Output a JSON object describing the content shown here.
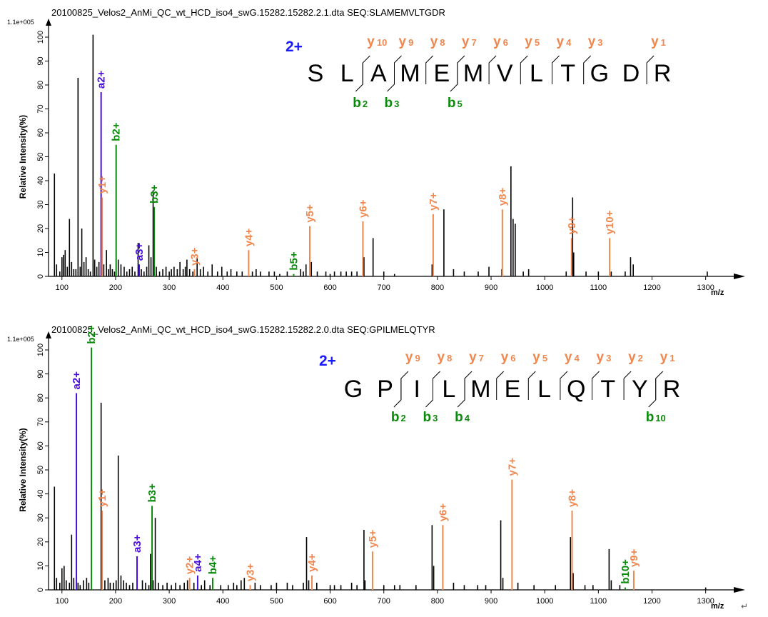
{
  "colors": {
    "y": "#f0874f",
    "b": "#0a8a0a",
    "a": "#4a0fe0",
    "unassigned": "#000000",
    "charge": "#1a1aff"
  },
  "labels": {
    "ylabel": "Relative  Intensity(%)",
    "xlabel": "m/z",
    "scale": "1.1e+005"
  },
  "chart_data": [
    {
      "type": "bar",
      "title": "20100825_Velos2_AnMi_QC_wt_HCD_iso4_swG.15282.15282.2.1.dta  SEQ:SLAMEMVLTGDR",
      "xlabel": "m/z",
      "ylabel": "Relative  Intensity(%)",
      "scale": "1.1e+005",
      "xlim": [
        75,
        1355
      ],
      "ylim": [
        0,
        105
      ],
      "xticks": [
        100,
        200,
        300,
        400,
        500,
        600,
        700,
        800,
        900,
        1000,
        1100,
        1200,
        1300
      ],
      "yticks": [
        0,
        10,
        20,
        30,
        40,
        50,
        60,
        70,
        80,
        90,
        100
      ],
      "charge": "2+",
      "sequence": [
        "S",
        "L",
        "A",
        "M",
        "E",
        "M",
        "V",
        "L",
        "T",
        "G",
        "D",
        "R"
      ],
      "y_ions": [
        {
          "num": "10",
          "after": 2
        },
        {
          "num": "9",
          "after": 3
        },
        {
          "num": "8",
          "after": 4
        },
        {
          "num": "7",
          "after": 5
        },
        {
          "num": "6",
          "after": 6
        },
        {
          "num": "5",
          "after": 7
        },
        {
          "num": "4",
          "after": 8
        },
        {
          "num": "3",
          "after": 9
        },
        {
          "num": "1",
          "after": 11
        }
      ],
      "b_ions": [
        {
          "num": "2",
          "after": 2
        },
        {
          "num": "3",
          "after": 3
        },
        {
          "num": "5",
          "after": 5
        }
      ],
      "annotated_peaks": [
        {
          "label": "a2+",
          "x": 173,
          "y": 77,
          "ion": "a"
        },
        {
          "label": "y1+",
          "x": 175,
          "y": 33,
          "ion": "y"
        },
        {
          "label": "b2+",
          "x": 201,
          "y": 55,
          "ion": "b"
        },
        {
          "label": "a3+",
          "x": 244,
          "y": 5,
          "ion": "a"
        },
        {
          "label": "b3+",
          "x": 272,
          "y": 29,
          "ion": "b"
        },
        {
          "label": "y3+",
          "x": 347,
          "y": 3,
          "ion": "y"
        },
        {
          "label": "y4+",
          "x": 448,
          "y": 11,
          "ion": "y"
        },
        {
          "label": "b5+",
          "x": 532,
          "y": 1,
          "ion": "b"
        },
        {
          "label": "y5+",
          "x": 562,
          "y": 21,
          "ion": "y"
        },
        {
          "label": "y6+",
          "x": 661,
          "y": 23,
          "ion": "y"
        },
        {
          "label": "y7+",
          "x": 792,
          "y": 26,
          "ion": "y"
        },
        {
          "label": "y8+",
          "x": 921,
          "y": 28,
          "ion": "y"
        },
        {
          "label": "y9+",
          "x": 1050,
          "y": 16,
          "ion": "y"
        },
        {
          "label": "y10+",
          "x": 1121,
          "y": 16,
          "ion": "y"
        }
      ],
      "unassigned_peaks": [
        [
          86,
          43
        ],
        [
          90,
          5
        ],
        [
          96,
          2
        ],
        [
          100,
          8
        ],
        [
          103,
          9
        ],
        [
          106,
          11
        ],
        [
          110,
          4
        ],
        [
          114,
          24
        ],
        [
          118,
          6
        ],
        [
          122,
          3
        ],
        [
          126,
          3
        ],
        [
          130,
          83
        ],
        [
          134,
          4
        ],
        [
          137,
          20
        ],
        [
          141,
          6
        ],
        [
          145,
          8
        ],
        [
          149,
          3
        ],
        [
          153,
          2
        ],
        [
          158,
          101
        ],
        [
          161,
          7
        ],
        [
          165,
          4
        ],
        [
          169,
          6
        ],
        [
          178,
          5
        ],
        [
          183,
          11
        ],
        [
          187,
          3
        ],
        [
          190,
          5
        ],
        [
          194,
          3
        ],
        [
          198,
          2
        ],
        [
          205,
          7
        ],
        [
          210,
          5
        ],
        [
          216,
          4
        ],
        [
          221,
          2
        ],
        [
          226,
          3
        ],
        [
          231,
          4
        ],
        [
          236,
          2
        ],
        [
          242,
          14
        ],
        [
          248,
          3
        ],
        [
          253,
          2
        ],
        [
          258,
          4
        ],
        [
          262,
          13
        ],
        [
          266,
          8
        ],
        [
          270,
          36
        ],
        [
          276,
          4
        ],
        [
          282,
          2
        ],
        [
          288,
          3
        ],
        [
          294,
          4
        ],
        [
          300,
          2
        ],
        [
          304,
          3
        ],
        [
          309,
          4
        ],
        [
          315,
          3
        ],
        [
          320,
          6
        ],
        [
          326,
          3
        ],
        [
          330,
          4
        ],
        [
          333,
          7
        ],
        [
          338,
          3
        ],
        [
          344,
          2
        ],
        [
          352,
          8
        ],
        [
          358,
          3
        ],
        [
          364,
          4
        ],
        [
          372,
          2
        ],
        [
          380,
          5
        ],
        [
          390,
          2
        ],
        [
          398,
          4
        ],
        [
          408,
          2
        ],
        [
          415,
          3
        ],
        [
          426,
          2
        ],
        [
          436,
          2
        ],
        [
          455,
          2
        ],
        [
          462,
          3
        ],
        [
          470,
          2
        ],
        [
          486,
          2
        ],
        [
          496,
          2
        ],
        [
          506,
          1
        ],
        [
          520,
          2
        ],
        [
          545,
          3
        ],
        [
          550,
          2
        ],
        [
          555,
          5
        ],
        [
          565,
          6
        ],
        [
          576,
          2
        ],
        [
          592,
          2
        ],
        [
          600,
          1
        ],
        [
          608,
          2
        ],
        [
          620,
          2
        ],
        [
          630,
          2
        ],
        [
          640,
          2
        ],
        [
          650,
          2
        ],
        [
          663,
          8
        ],
        [
          680,
          16
        ],
        [
          700,
          2
        ],
        [
          720,
          1
        ],
        [
          790,
          5
        ],
        [
          812,
          28
        ],
        [
          830,
          3
        ],
        [
          850,
          2
        ],
        [
          876,
          2
        ],
        [
          896,
          4
        ],
        [
          920,
          3
        ],
        [
          937,
          46
        ],
        [
          941,
          24
        ],
        [
          945,
          22
        ],
        [
          960,
          2
        ],
        [
          970,
          3
        ],
        [
          1040,
          2
        ],
        [
          1052,
          33
        ],
        [
          1054,
          10
        ],
        [
          1077,
          2
        ],
        [
          1100,
          2
        ],
        [
          1124,
          2
        ],
        [
          1150,
          2
        ],
        [
          1160,
          8
        ],
        [
          1165,
          5
        ],
        [
          1303,
          2
        ]
      ]
    },
    {
      "type": "bar",
      "title": "20100825_Velos2_AnMi_QC_wt_HCD_iso4_swG.15282.15282.2.0.dta  SEQ:GPILMELQTYR",
      "xlabel": "m/z",
      "ylabel": "Relative  Intensity(%)",
      "scale": "1.1e+005",
      "xlim": [
        75,
        1355
      ],
      "ylim": [
        0,
        105
      ],
      "xticks": [
        100,
        200,
        300,
        400,
        500,
        600,
        700,
        800,
        900,
        1000,
        1100,
        1200,
        1300
      ],
      "yticks": [
        0,
        10,
        20,
        30,
        40,
        50,
        60,
        70,
        80,
        90,
        100
      ],
      "charge": "2+",
      "sequence": [
        "G",
        "P",
        "I",
        "L",
        "M",
        "E",
        "L",
        "Q",
        "T",
        "Y",
        "R"
      ],
      "y_ions": [
        {
          "num": "9",
          "after": 2
        },
        {
          "num": "8",
          "after": 3
        },
        {
          "num": "7",
          "after": 4
        },
        {
          "num": "6",
          "after": 5
        },
        {
          "num": "5",
          "after": 6
        },
        {
          "num": "4",
          "after": 7
        },
        {
          "num": "3",
          "after": 8
        },
        {
          "num": "2",
          "after": 9
        },
        {
          "num": "1",
          "after": 10
        }
      ],
      "b_ions": [
        {
          "num": "2",
          "after": 2
        },
        {
          "num": "3",
          "after": 3
        },
        {
          "num": "4",
          "after": 4
        },
        {
          "num": "10",
          "after": 10
        }
      ],
      "annotated_peaks": [
        {
          "label": "a2+",
          "x": 127,
          "y": 82,
          "ion": "a"
        },
        {
          "label": "b2+",
          "x": 155,
          "y": 101,
          "ion": "b"
        },
        {
          "label": "y1+",
          "x": 175,
          "y": 33,
          "ion": "y"
        },
        {
          "label": "a3+",
          "x": 240,
          "y": 14,
          "ion": "a"
        },
        {
          "label": "b3+",
          "x": 268,
          "y": 35,
          "ion": "b"
        },
        {
          "label": "y2+",
          "x": 338,
          "y": 5,
          "ion": "y"
        },
        {
          "label": "a4+",
          "x": 353,
          "y": 6,
          "ion": "a"
        },
        {
          "label": "b4+",
          "x": 381,
          "y": 5,
          "ion": "b"
        },
        {
          "label": "y3+",
          "x": 451,
          "y": 2,
          "ion": "y"
        },
        {
          "label": "y4+",
          "x": 566,
          "y": 6,
          "ion": "y"
        },
        {
          "label": "y5+",
          "x": 679,
          "y": 16,
          "ion": "y"
        },
        {
          "label": "y6+",
          "x": 810,
          "y": 27,
          "ion": "y"
        },
        {
          "label": "y7+",
          "x": 939,
          "y": 46,
          "ion": "y"
        },
        {
          "label": "y8+",
          "x": 1051,
          "y": 33,
          "ion": "y"
        },
        {
          "label": "b10+",
          "x": 1150,
          "y": 1,
          "ion": "b"
        },
        {
          "label": "y9+",
          "x": 1166,
          "y": 8,
          "ion": "y"
        }
      ],
      "unassigned_peaks": [
        [
          86,
          43
        ],
        [
          90,
          5
        ],
        [
          96,
          3
        ],
        [
          100,
          9
        ],
        [
          104,
          10
        ],
        [
          108,
          4
        ],
        [
          114,
          3
        ],
        [
          118,
          23
        ],
        [
          122,
          5
        ],
        [
          130,
          3
        ],
        [
          134,
          2
        ],
        [
          140,
          4
        ],
        [
          146,
          5
        ],
        [
          150,
          3
        ],
        [
          173,
          78
        ],
        [
          180,
          4
        ],
        [
          186,
          5
        ],
        [
          190,
          3
        ],
        [
          196,
          3
        ],
        [
          201,
          4
        ],
        [
          205,
          56
        ],
        [
          210,
          6
        ],
        [
          215,
          4
        ],
        [
          220,
          3
        ],
        [
          226,
          2
        ],
        [
          232,
          3
        ],
        [
          250,
          4
        ],
        [
          256,
          3
        ],
        [
          262,
          2
        ],
        [
          265,
          15
        ],
        [
          270,
          4
        ],
        [
          274,
          30
        ],
        [
          280,
          3
        ],
        [
          288,
          2
        ],
        [
          296,
          3
        ],
        [
          304,
          2
        ],
        [
          312,
          3
        ],
        [
          320,
          2
        ],
        [
          328,
          3
        ],
        [
          334,
          4
        ],
        [
          346,
          3
        ],
        [
          360,
          2
        ],
        [
          366,
          4
        ],
        [
          376,
          2
        ],
        [
          396,
          2
        ],
        [
          410,
          2
        ],
        [
          420,
          3
        ],
        [
          426,
          2
        ],
        [
          434,
          4
        ],
        [
          440,
          5
        ],
        [
          460,
          3
        ],
        [
          470,
          2
        ],
        [
          490,
          2
        ],
        [
          500,
          3
        ],
        [
          520,
          3
        ],
        [
          530,
          2
        ],
        [
          550,
          3
        ],
        [
          556,
          22
        ],
        [
          560,
          4
        ],
        [
          575,
          3
        ],
        [
          600,
          2
        ],
        [
          608,
          2
        ],
        [
          620,
          2
        ],
        [
          640,
          3
        ],
        [
          650,
          2
        ],
        [
          663,
          25
        ],
        [
          665,
          4
        ],
        [
          700,
          2
        ],
        [
          720,
          2
        ],
        [
          730,
          2
        ],
        [
          760,
          2
        ],
        [
          790,
          27
        ],
        [
          793,
          10
        ],
        [
          830,
          3
        ],
        [
          850,
          2
        ],
        [
          875,
          2
        ],
        [
          890,
          2
        ],
        [
          918,
          29
        ],
        [
          922,
          5
        ],
        [
          950,
          3
        ],
        [
          980,
          2
        ],
        [
          1020,
          2
        ],
        [
          1048,
          22
        ],
        [
          1053,
          7
        ],
        [
          1075,
          2
        ],
        [
          1090,
          2
        ],
        [
          1120,
          17
        ],
        [
          1124,
          4
        ],
        [
          1140,
          2
        ],
        [
          1300,
          1
        ]
      ]
    }
  ],
  "footer": {
    "return_mark": "↵"
  }
}
